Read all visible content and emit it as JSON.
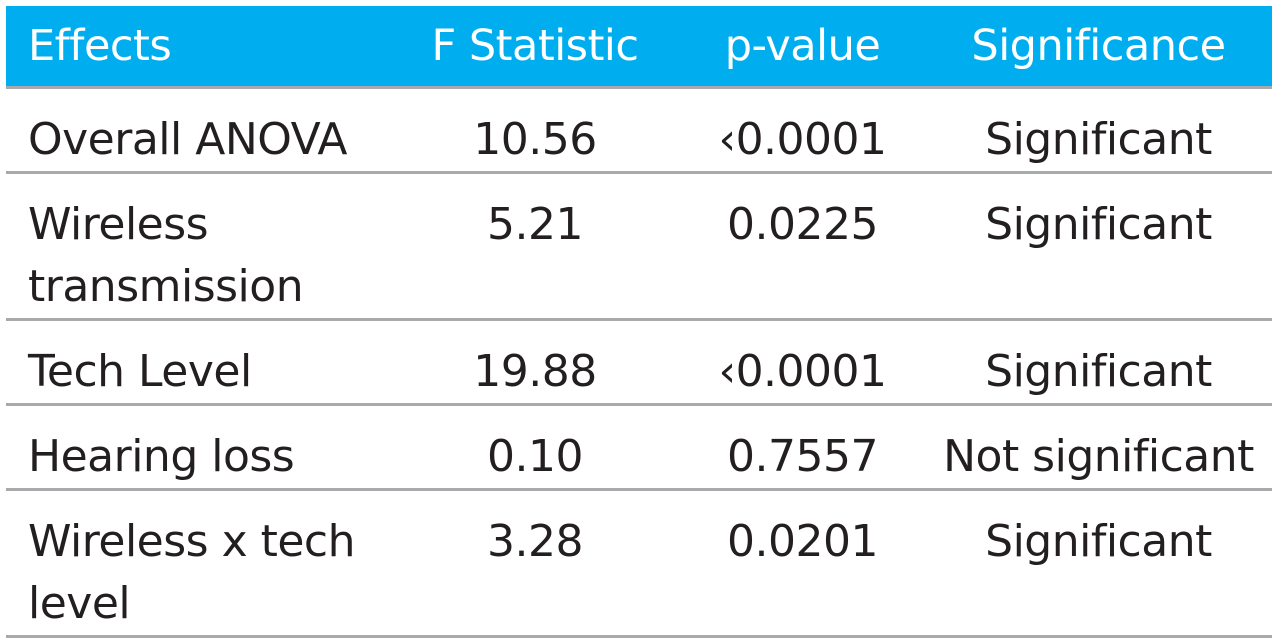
{
  "table": {
    "headers": [
      "Effects",
      "F Statistic",
      "p-value",
      "Significance"
    ],
    "rows": [
      {
        "effect": "Overall ANOVA",
        "f": "10.56",
        "p": "‹0.0001",
        "significance": "Significant"
      },
      {
        "effect": "Wireless transmission",
        "f": "5.21",
        "p": "0.0225",
        "significance": "Significant"
      },
      {
        "effect": "Tech Level",
        "f": "19.88",
        "p": "‹0.0001",
        "significance": "Significant"
      },
      {
        "effect": "Hearing loss",
        "f": "0.10",
        "p": "0.7557",
        "significance": "Not significant"
      },
      {
        "effect": "Wireless x tech level",
        "f": "3.28",
        "p": "0.0201",
        "significance": "Significant"
      }
    ]
  },
  "colors": {
    "header_bg": "#00aeef",
    "header_text": "#ffffff",
    "body_text": "#231f20",
    "row_divider": "#a7a9ac"
  }
}
